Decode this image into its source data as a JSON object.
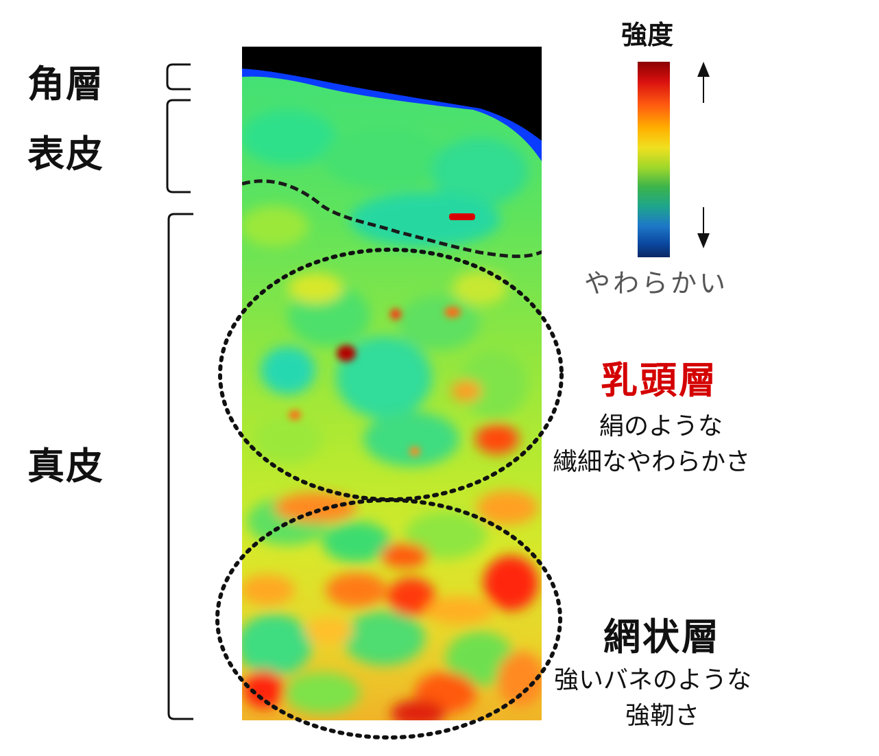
{
  "layers": {
    "stratum_corneum": "角層",
    "epidermis": "表皮",
    "dermis": "真皮"
  },
  "scale": {
    "title": "強度",
    "bottom_label": "やわらかい",
    "stops": [
      "#8b0000",
      "#e41a1c",
      "#ff7f00",
      "#ffd400",
      "#c8e81e",
      "#3cb44b",
      "#1ea58c",
      "#1e78c8",
      "#0a3c96",
      "#0a2864"
    ]
  },
  "regions": {
    "papillary": {
      "title": "乳頭層",
      "title_color": "#d40000",
      "desc_line1": "絹のような",
      "desc_line2": "繊細なやわらかさ"
    },
    "reticular": {
      "title": "網状層",
      "title_color": "#111111",
      "desc_line1": "強いバネのような",
      "desc_line2": "強靭さ"
    }
  },
  "heatmap_colors": {
    "background": "#000000",
    "surface": "#0a3cff",
    "soft": "#2fe08a",
    "mid": "#9be83a",
    "firm": "#ffd21e",
    "hard": "#ff4a10",
    "max": "#c80000"
  }
}
